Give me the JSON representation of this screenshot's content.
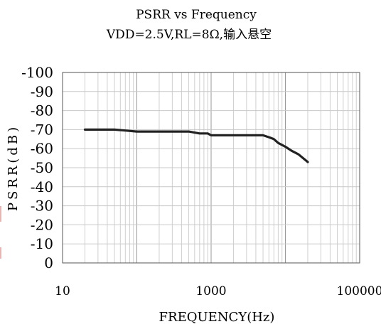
{
  "chart_data": {
    "type": "line",
    "title": "PSRR vs Frequency",
    "subtitle": "VDD=2.5V,RL=8Ω,输入悬空",
    "xlabel": "FREQUENCY(Hz)",
    "ylabel": "PSRR(dB)",
    "x_scale": "log",
    "xlim": [
      10,
      100000
    ],
    "ylim": [
      0,
      -100
    ],
    "x_ticks": [
      "10",
      "1000",
      "100000"
    ],
    "x_tick_values": [
      10,
      1000,
      100000
    ],
    "y_ticks": [
      "-100",
      "-90",
      "-80",
      "-70",
      "-60",
      "-50",
      "-40",
      "-30",
      "-20",
      "-10",
      "0"
    ],
    "y_tick_values": [
      -100,
      -90,
      -80,
      -70,
      -60,
      -50,
      -40,
      -30,
      -20,
      -10,
      0
    ],
    "grid": true,
    "line_color": "#222222",
    "series": [
      {
        "x": [
          20,
          30,
          35,
          40,
          50,
          70,
          100,
          150,
          200,
          300,
          400,
          500,
          700,
          900,
          1000,
          1500,
          2000,
          3000,
          4000,
          5000,
          6000,
          7000,
          8000,
          10000,
          12000,
          15000,
          20000
        ],
        "y": [
          -70,
          -70,
          -70,
          -70,
          -70,
          -69.5,
          -69,
          -69,
          -69,
          -69,
          -69,
          -69,
          -68,
          -68,
          -67,
          -67,
          -67,
          -67,
          -67,
          -67,
          -66,
          -65,
          -63,
          -61,
          -59,
          -57,
          -53
        ]
      }
    ]
  }
}
